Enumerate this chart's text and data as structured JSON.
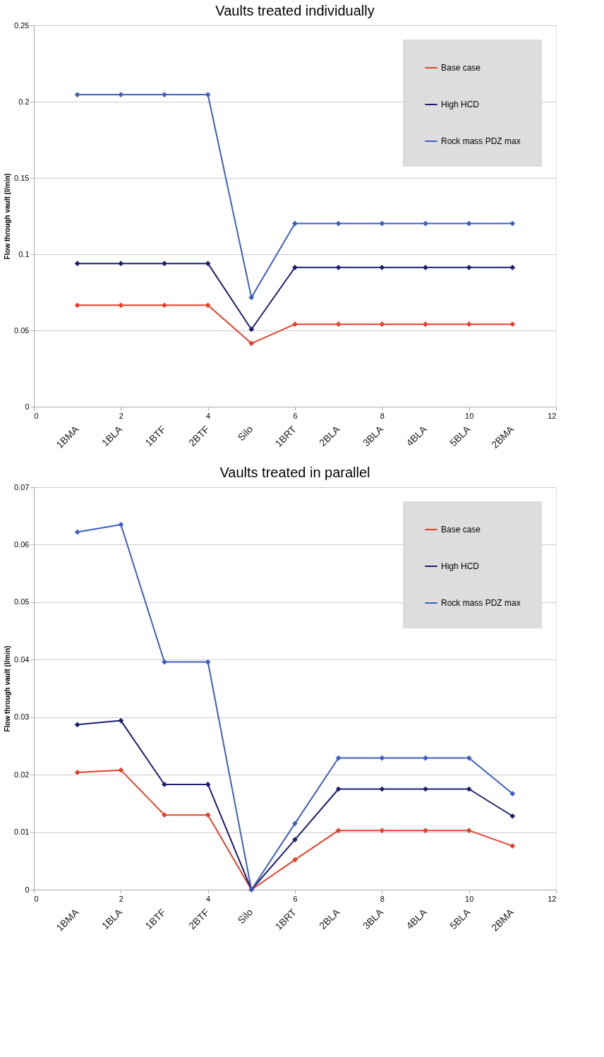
{
  "chart_data": [
    {
      "type": "line",
      "title": "Vaults treated individually",
      "ylabel": "Flow through vault (l/min)",
      "xlim": [
        0,
        12
      ],
      "xticks": [
        0,
        2,
        4,
        6,
        8,
        10,
        12
      ],
      "ylim": [
        0,
        0.25
      ],
      "yticks": [
        0,
        0.05,
        0.1,
        0.15,
        0.2,
        0.25
      ],
      "grid": "y",
      "legend": "top right",
      "marker": "diamond",
      "annotations": [
        "1BMA",
        "1BLA",
        "1BTF",
        "2BTF",
        "Silo",
        "1BRT",
        "2BLA",
        "3BLA",
        "4BLA",
        "5BLA",
        "2BMA"
      ],
      "series": [
        {
          "name": "Base case",
          "color": "#e5402a",
          "x": [
            1,
            2,
            3,
            4,
            5,
            6,
            7,
            8,
            9,
            10,
            11
          ],
          "values": [
            0.0665,
            0.0665,
            0.0665,
            0.0665,
            0.0415,
            0.0541,
            0.0541,
            0.0541,
            0.0541,
            0.0541,
            0.0541
          ]
        },
        {
          "name": "High HCD",
          "color": "#1c1f6e",
          "x": [
            1,
            2,
            3,
            4,
            5,
            6,
            7,
            8,
            9,
            10,
            11
          ],
          "values": [
            0.0939,
            0.0939,
            0.0939,
            0.0939,
            0.0507,
            0.0913,
            0.0913,
            0.0913,
            0.0913,
            0.0913,
            0.0913
          ]
        },
        {
          "name": "Rock mass PDZ max",
          "color": "#3d5fbf",
          "x": [
            1,
            2,
            3,
            4,
            5,
            6,
            7,
            8,
            9,
            10,
            11
          ],
          "values": [
            0.2046,
            0.2046,
            0.2046,
            0.2046,
            0.0716,
            0.1201,
            0.1201,
            0.1201,
            0.1201,
            0.1201,
            0.1201
          ]
        }
      ]
    },
    {
      "type": "line",
      "title": "Vaults treated in parallel",
      "ylabel": "Flow through vault (l/min)",
      "xlim": [
        0,
        12
      ],
      "xticks": [
        0,
        2,
        4,
        6,
        8,
        10,
        12
      ],
      "ylim": [
        0,
        0.07
      ],
      "yticks": [
        0,
        0.01,
        0.02,
        0.03,
        0.04,
        0.05,
        0.06,
        0.07
      ],
      "grid": "y",
      "legend": "top right",
      "marker": "diamond",
      "annotations": [
        "1BMA",
        "1BLA",
        "1BTF",
        "2BTF",
        "Silo",
        "1BRT",
        "2BLA",
        "3BLA",
        "4BLA",
        "5BLA",
        "2BMA"
      ],
      "series": [
        {
          "name": "Base case",
          "color": "#e5402a",
          "x": [
            1,
            2,
            3,
            4,
            5,
            6,
            7,
            8,
            9,
            10,
            11
          ],
          "values": [
            0.0204,
            0.0208,
            0.013,
            0.013,
            0,
            0.0052,
            0.0103,
            0.0103,
            0.0103,
            0.0103,
            0.0076
          ]
        },
        {
          "name": "High HCD",
          "color": "#1c1f6e",
          "x": [
            1,
            2,
            3,
            4,
            5,
            6,
            7,
            8,
            9,
            10,
            11
          ],
          "values": [
            0.0287,
            0.0294,
            0.0183,
            0.0183,
            0,
            0.0087,
            0.0175,
            0.0175,
            0.0175,
            0.0175,
            0.0128
          ]
        },
        {
          "name": "Rock mass PDZ max",
          "color": "#3d5fbf",
          "x": [
            1,
            2,
            3,
            4,
            5,
            6,
            7,
            8,
            9,
            10,
            11
          ],
          "values": [
            0.0622,
            0.0635,
            0.0396,
            0.0396,
            0,
            0.0115,
            0.0229,
            0.0229,
            0.0229,
            0.0229,
            0.0167
          ]
        }
      ]
    }
  ]
}
